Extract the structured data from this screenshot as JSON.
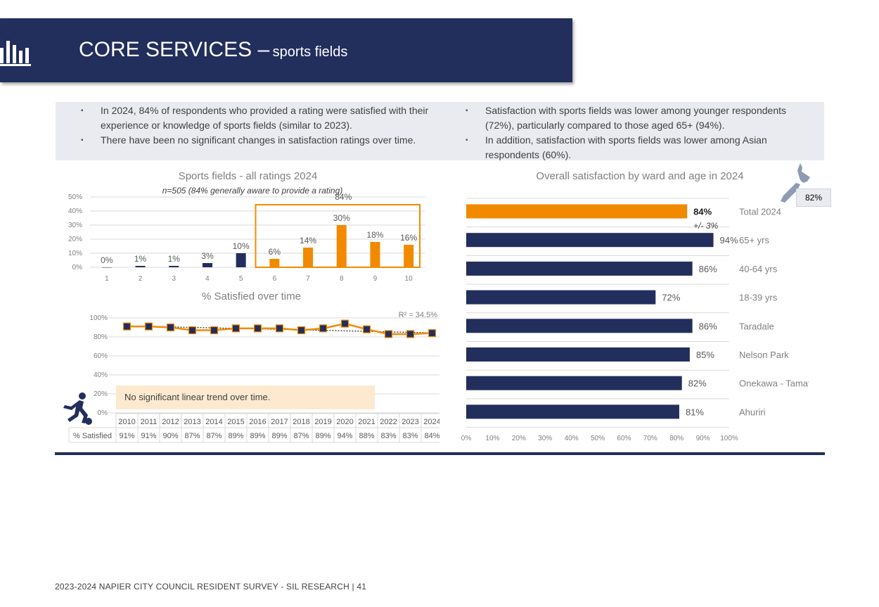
{
  "header": {
    "title_main": "CORE SERVICES –",
    "title_sub": "sports fields",
    "icon": "bar-chart-icon"
  },
  "summary": {
    "left": [
      "In 2024, 84% of respondents who provided a rating were satisfied with their experience or knowledge of sports fields (similar to 2023).",
      "There have been no significant changes in satisfaction ratings over time."
    ],
    "right": [
      "Satisfaction with sports fields was lower among younger respondents (72%), particularly compared to those aged 65+ (94%).",
      "In addition, satisfaction with sports fields was lower among Asian respondents (60%)."
    ]
  },
  "map_badge": {
    "icon": "new-zealand-map-icon",
    "value": "82%"
  },
  "trend_note": "No significant linear trend over time.",
  "runner_icon": "soccer-player-icon",
  "footer": "2023-2024 NAPIER CITY COUNCIL RESIDENT SURVEY - SIL RESEARCH | 41",
  "colors": {
    "navy": "#222e5c",
    "orange": "#f28a00",
    "grid": "#d9d9d9",
    "highlight_bg": "#fde9cf"
  },
  "chart_data": [
    {
      "type": "bar",
      "title": "Sports fields - all ratings 2024",
      "subtitle": "n=505 (84% generally aware to provide a rating)",
      "categories": [
        "1",
        "2",
        "3",
        "4",
        "5",
        "6",
        "7",
        "8",
        "9",
        "10"
      ],
      "values": [
        0,
        1,
        1,
        3,
        10,
        6,
        14,
        30,
        18,
        16
      ],
      "labels": [
        "0%",
        "1%",
        "1%",
        "3%",
        "10%",
        "6%",
        "14%",
        "30%",
        "18%",
        "16%"
      ],
      "highlight_from": 6,
      "highlight_label": "84%",
      "yticks": [
        "0%",
        "10%",
        "20%",
        "30%",
        "40%",
        "50%"
      ],
      "ylim": [
        0,
        50
      ],
      "grid": true
    },
    {
      "type": "line",
      "title": "% Satisfied over time",
      "r2_label": "R² = 34.5%",
      "x": [
        "2010",
        "2011",
        "2012",
        "2013",
        "2014",
        "2015",
        "2016",
        "2017",
        "2018",
        "2019",
        "2020",
        "2021",
        "2022",
        "2023",
        "2024"
      ],
      "values": [
        91,
        91,
        90,
        87,
        87,
        89,
        89,
        89,
        87,
        89,
        94,
        88,
        83,
        83,
        84
      ],
      "table_row_label": "% Satisfied",
      "table_values": [
        "91%",
        "91%",
        "90%",
        "87%",
        "87%",
        "89%",
        "89%",
        "89%",
        "87%",
        "89%",
        "94%",
        "88%",
        "83%",
        "83%",
        "84%"
      ],
      "trend_line": [
        91.6,
        84.3
      ],
      "yticks": [
        "0%",
        "20%",
        "40%",
        "60%",
        "80%",
        "100%"
      ],
      "ylim": [
        0,
        100
      ],
      "grid": true
    },
    {
      "type": "bar",
      "orientation": "horizontal",
      "title": "Overall satisfaction by ward and age in 2024",
      "categories": [
        "Total 2024",
        "65+ yrs",
        "40-64 yrs",
        "18-39 yrs",
        "Taradale",
        "Nelson Park",
        "Onekawa - Tamatea",
        "Ahuriri"
      ],
      "values": [
        84,
        94,
        86,
        72,
        86,
        85,
        82,
        81
      ],
      "labels": [
        "84%",
        "94%",
        "86%",
        "72%",
        "86%",
        "85%",
        "82%",
        "81%"
      ],
      "margin_label": "+/- 3%",
      "xticks": [
        "0%",
        "10%",
        "20%",
        "30%",
        "40%",
        "50%",
        "60%",
        "70%",
        "80%",
        "90%",
        "100%"
      ],
      "xlim": [
        0,
        100
      ]
    }
  ]
}
